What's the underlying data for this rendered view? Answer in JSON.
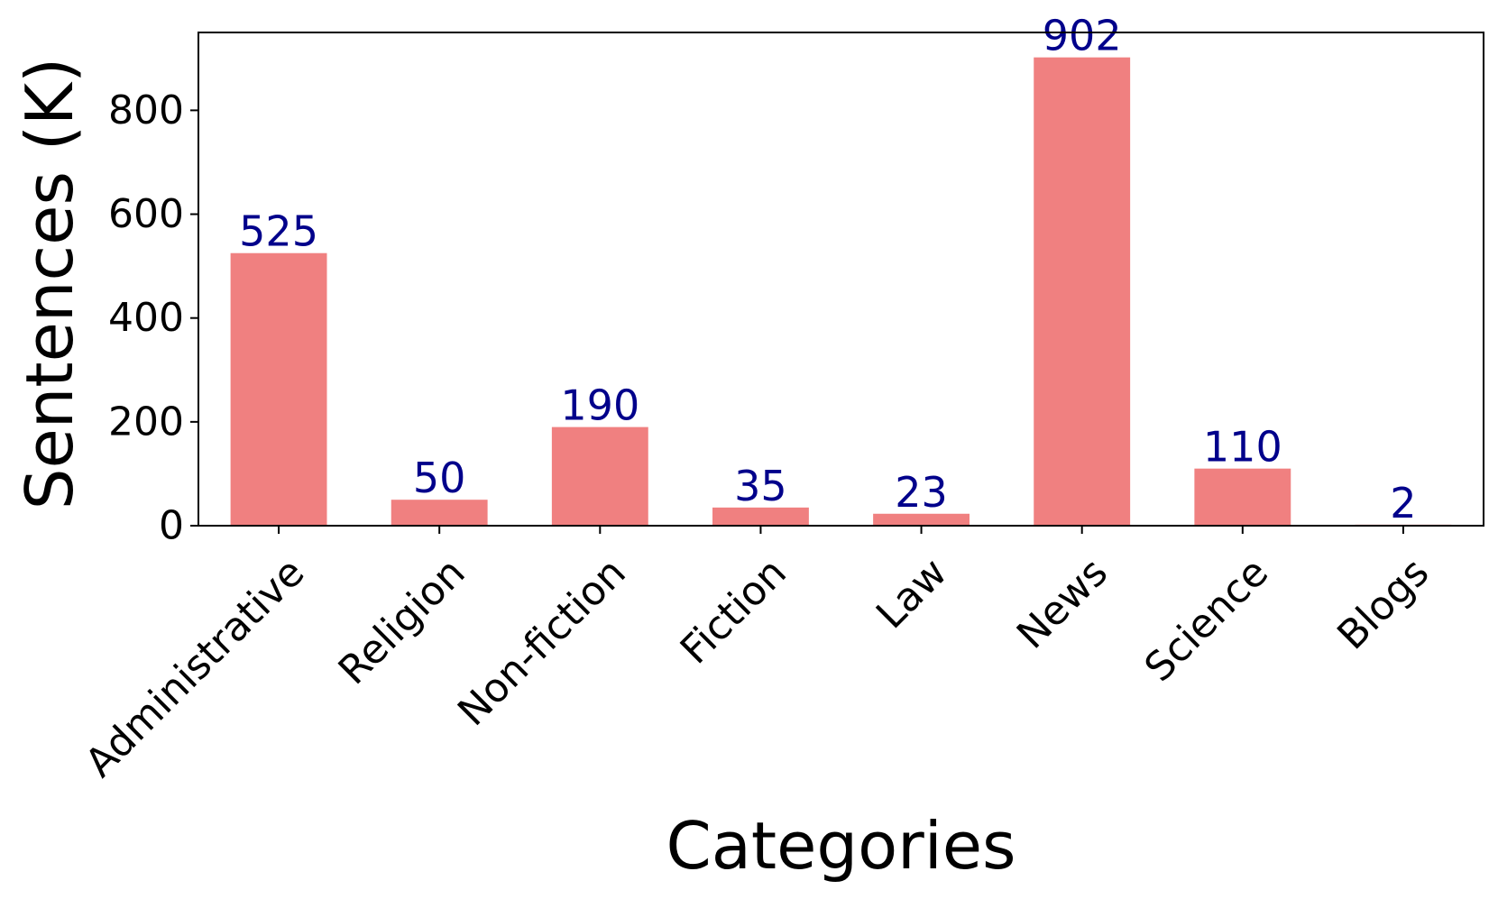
{
  "chart_data": {
    "type": "bar",
    "title": "",
    "xlabel": "Categories",
    "ylabel": "Sentences (K)",
    "categories": [
      "Administrative",
      "Religion",
      "Non-fiction",
      "Fiction",
      "Law",
      "News",
      "Science",
      "Blogs"
    ],
    "values": [
      525,
      50,
      190,
      35,
      23,
      902,
      110,
      2
    ],
    "data_labels": [
      "525",
      "50",
      "190",
      "35",
      "23",
      "902",
      "110",
      "2"
    ],
    "ylim": [
      0,
      950
    ],
    "yticks": [
      0,
      200,
      400,
      600,
      800
    ],
    "ytick_labels": [
      "0",
      "200",
      "400",
      "600",
      "800"
    ],
    "grid": false,
    "legend": false,
    "bar_color": "#f08080",
    "label_color": "#00008b",
    "x_tick_rotation": -45
  }
}
